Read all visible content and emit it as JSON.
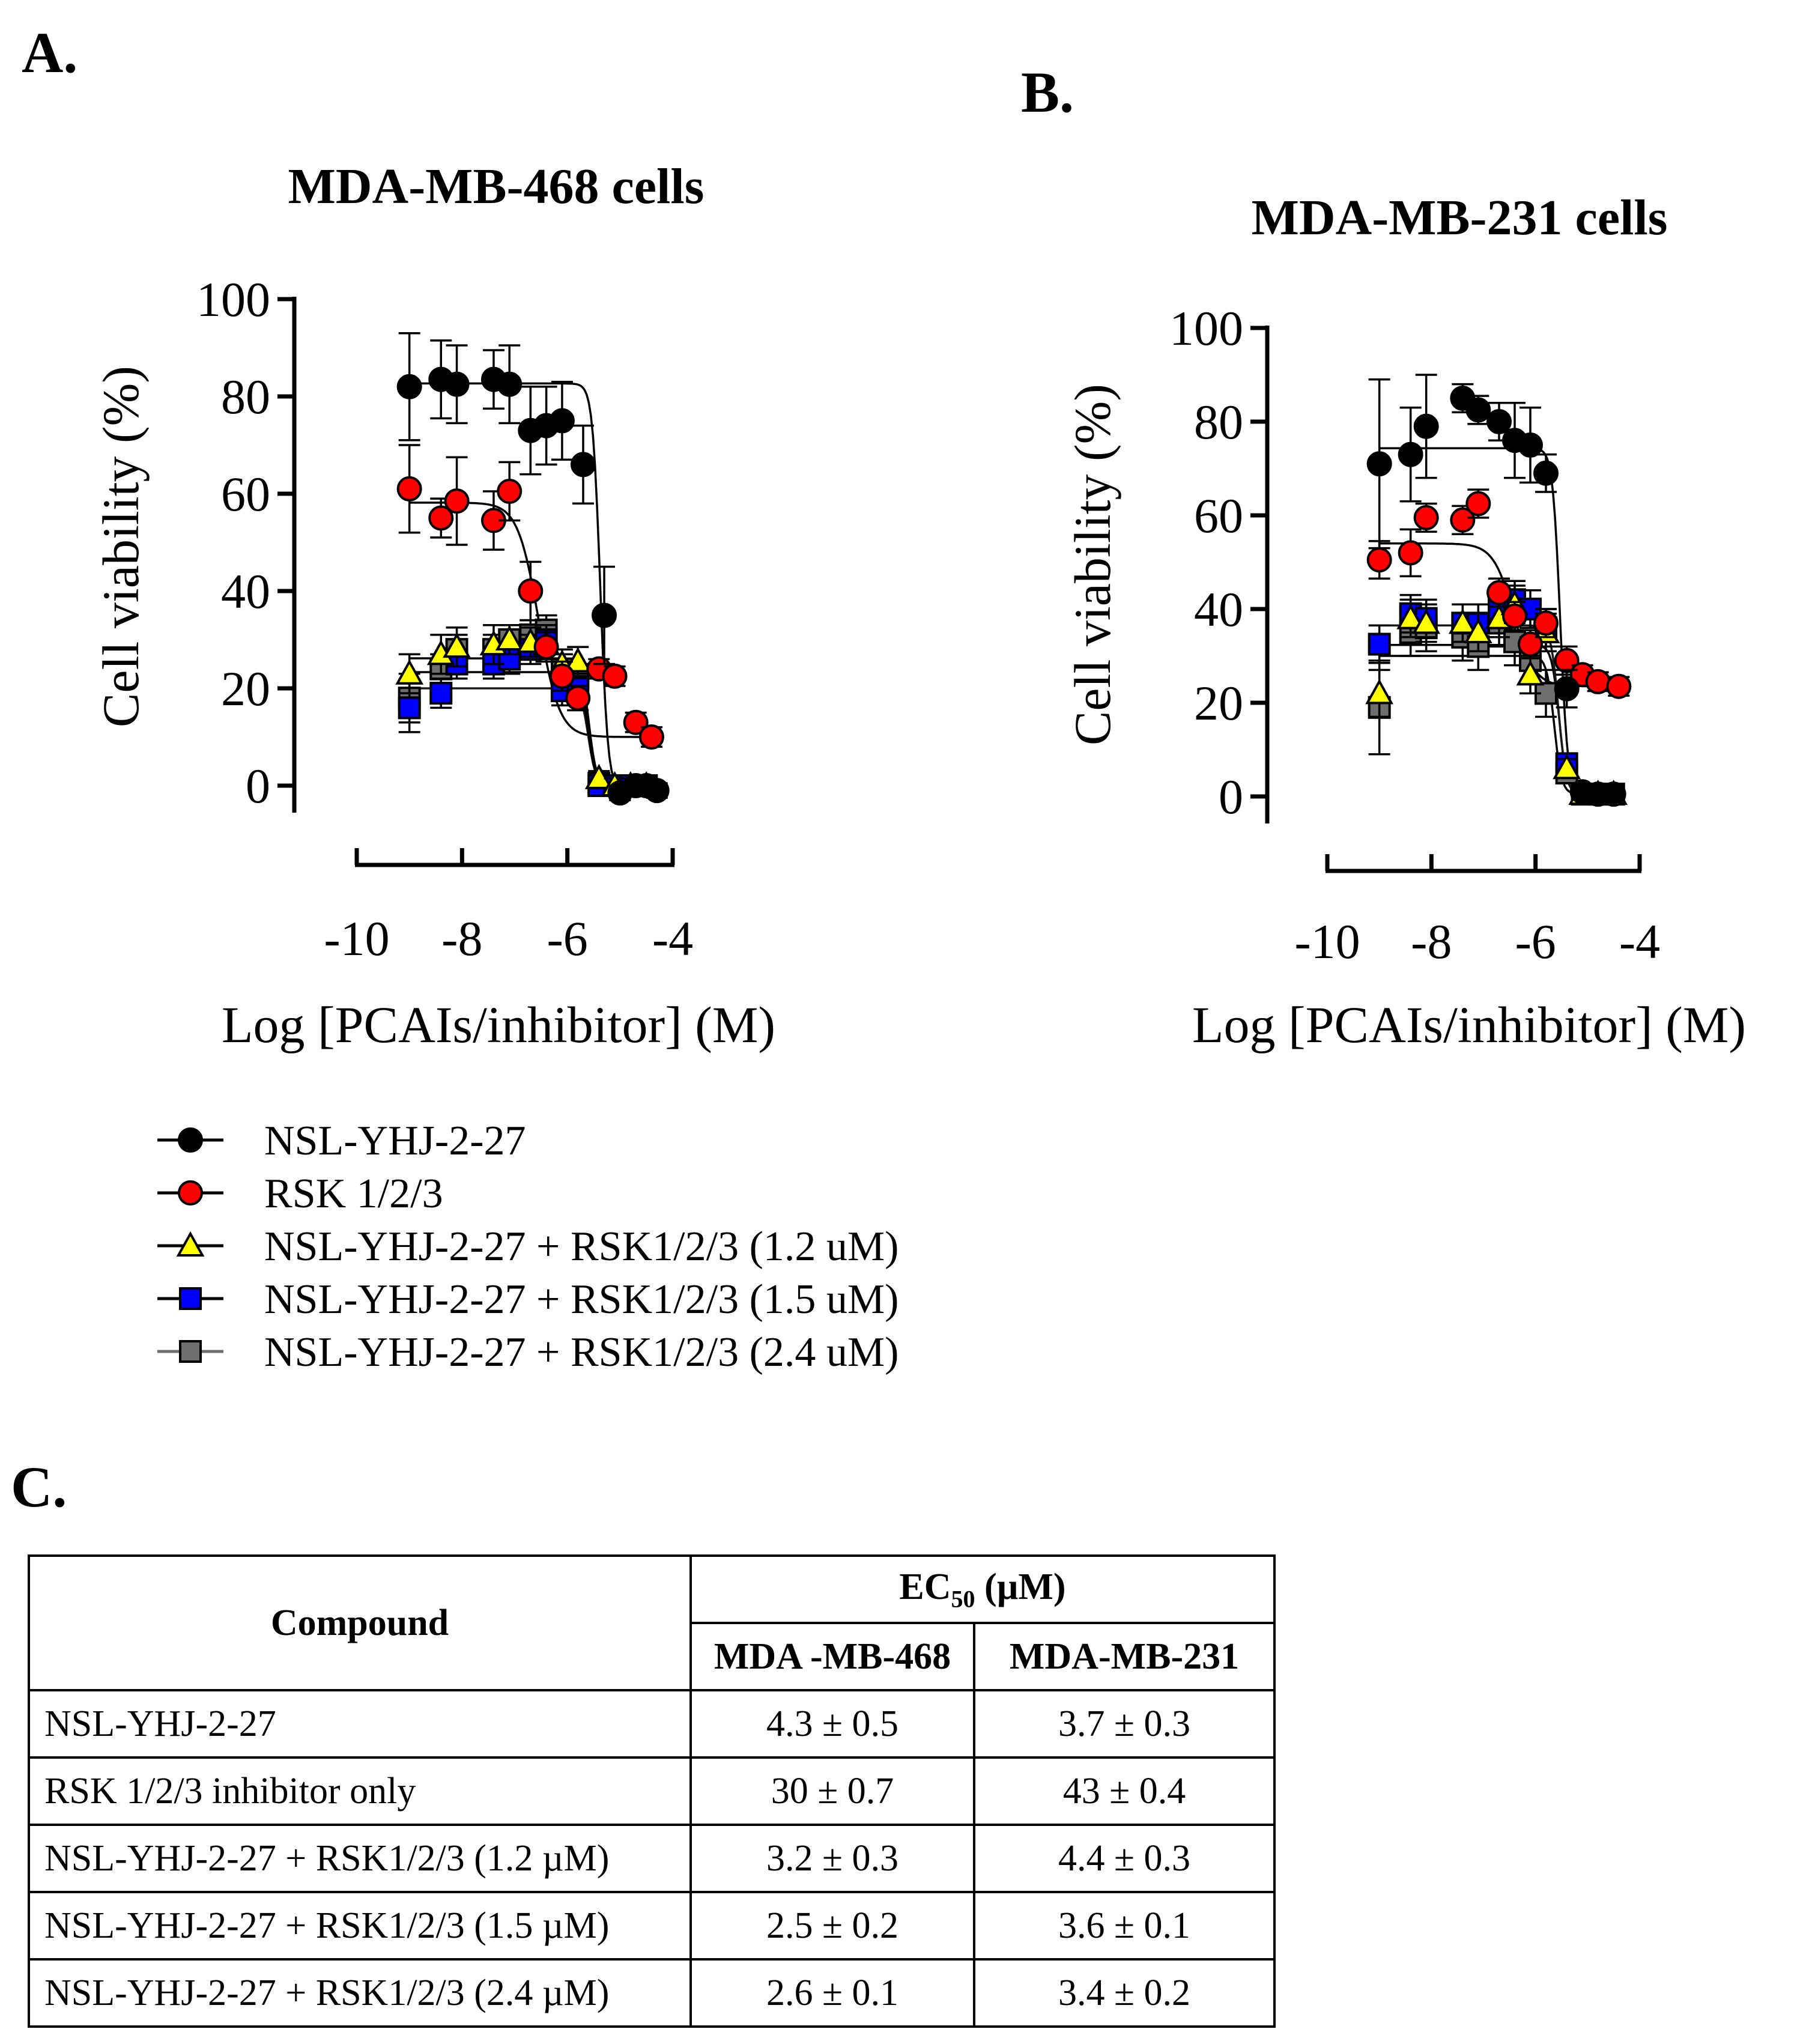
{
  "panels": {
    "a": {
      "label": "A."
    },
    "b": {
      "label": "B."
    },
    "c": {
      "label": "C."
    }
  },
  "chart_data": [
    {
      "type": "scatter",
      "panel": "A.",
      "title": "MDA-MB-468 cells",
      "xlabel": "Log [PCAIs/inhibitor] (M)",
      "ylabel": "Cell viability (%)",
      "xlim": [
        -10,
        -4
      ],
      "ylim": [
        0,
        100
      ],
      "xticks": [
        -10,
        -8,
        -6,
        -4
      ],
      "yticks": [
        0,
        20,
        40,
        60,
        80,
        100
      ],
      "xtick_labels": [
        "-10",
        "-8",
        "-6",
        "-4"
      ],
      "ytick_labels": [
        "0",
        "20",
        "40",
        "60",
        "80",
        "100"
      ],
      "series": [
        {
          "name": "NSL-YHJ-2-27",
          "marker": "circle",
          "color": "#000000",
          "x": [
            -9,
            -8.4,
            -8.1,
            -7.4,
            -7.1,
            -6.7,
            -6.4,
            -6.1,
            -5.7,
            -5.3,
            -5.0,
            -4.7,
            -4.5,
            -4.3
          ],
          "y": [
            82,
            83.5,
            82.5,
            83.5,
            82.5,
            73,
            74,
            75,
            66,
            35,
            -1.5,
            0,
            0,
            -1
          ],
          "err": [
            11,
            8,
            8,
            6,
            8,
            9,
            8,
            8,
            8,
            10,
            1.5,
            1.5,
            1.5,
            1.5
          ]
        },
        {
          "name": "RSK 1/2/3",
          "marker": "circle",
          "color": "#ff0000",
          "x": [
            -9,
            -8.4,
            -8.1,
            -7.4,
            -7.1,
            -6.7,
            -6.4,
            -6.1,
            -5.8,
            -5.4,
            -5.1,
            -4.7,
            -4.4
          ],
          "y": [
            61,
            55,
            58.5,
            54.5,
            60.5,
            40,
            28.5,
            22.5,
            18,
            24,
            22.5,
            13,
            10
          ],
          "err": [
            9,
            4,
            9,
            6,
            6,
            6,
            3,
            3,
            2.5,
            2,
            2,
            2,
            2
          ]
        },
        {
          "name": "NSL-YHJ-2-27 + RSK1/2/3 (1.2 uM)",
          "marker": "triangle",
          "color": "#ffff00",
          "x": [
            -9,
            -8.4,
            -8.1,
            -7.4,
            -7.1,
            -6.7,
            -6.4,
            -6.1,
            -5.8,
            -5.4,
            -5.1,
            -4.8,
            -4.5
          ],
          "y": [
            23,
            27,
            28.5,
            29,
            30,
            29.5,
            29,
            25,
            25.5,
            1.5,
            0,
            0,
            0
          ],
          "err": [
            4,
            4,
            4,
            4,
            3,
            3,
            3,
            3,
            3,
            1.5,
            1.5,
            1.5,
            1.5
          ]
        },
        {
          "name": "NSL-YHJ-2-27 + RSK1/2/3 (1.5 uM)",
          "marker": "square",
          "color": "#0000ff",
          "x": [
            -9,
            -8.4,
            -8.1,
            -7.4,
            -7.1,
            -6.7,
            -6.4,
            -6.1,
            -5.8,
            -5.4,
            -5.1,
            -4.8,
            -4.5
          ],
          "y": [
            16,
            19,
            25,
            25,
            26,
            28,
            30,
            19.5,
            20,
            0,
            0,
            0,
            0
          ],
          "err": [
            5,
            3,
            3,
            3,
            3,
            3,
            3,
            3,
            3,
            1.5,
            1.5,
            1.5,
            1.5
          ]
        },
        {
          "name": "NSL-YHJ-2-27 + RSK1/2/3 (2.4 uM)",
          "marker": "square",
          "color": "#6e6e6e",
          "x": [
            -9,
            -8.4,
            -8.1,
            -7.4,
            -7.1,
            -6.7,
            -6.4,
            -6.1,
            -5.8,
            -5.4,
            -5.1,
            -4.8,
            -4.5
          ],
          "y": [
            18,
            24,
            28,
            28,
            30,
            31,
            32,
            24,
            22,
            0.5,
            0,
            0,
            0
          ],
          "err": [
            5,
            3,
            3,
            3,
            3,
            3,
            3,
            3,
            3,
            1.5,
            1.5,
            1.5,
            1.5
          ]
        }
      ]
    },
    {
      "type": "scatter",
      "panel": "B.",
      "title": "MDA-MB-231 cells",
      "xlabel": "Log [PCAIs/inhibitor] (M)",
      "ylabel": "Cell viability (%)",
      "xlim": [
        -10,
        -4
      ],
      "ylim": [
        0,
        100
      ],
      "xticks": [
        -10,
        -8,
        -6,
        -4
      ],
      "yticks": [
        0,
        20,
        40,
        60,
        80,
        100
      ],
      "xtick_labels": [
        "-10",
        "-8",
        "-6",
        "-4"
      ],
      "ytick_labels": [
        "0",
        "20",
        "40",
        "60",
        "80",
        "100"
      ],
      "series": [
        {
          "name": "NSL-YHJ-2-27",
          "marker": "circle",
          "color": "#000000",
          "x": [
            -9,
            -8.4,
            -8.1,
            -7.4,
            -7.1,
            -6.7,
            -6.4,
            -6.1,
            -5.8,
            -5.4,
            -5.1,
            -4.8,
            -4.5
          ],
          "y": [
            71,
            73,
            79,
            85,
            82.5,
            80,
            76,
            75,
            69,
            23,
            1,
            0.5,
            0.5
          ],
          "err": [
            18,
            10,
            11,
            3,
            3,
            4,
            8,
            8,
            4,
            4,
            1.5,
            1.5,
            1.5
          ]
        },
        {
          "name": "RSK 1/2/3",
          "marker": "circle",
          "color": "#ff0000",
          "x": [
            -9,
            -8.4,
            -8.1,
            -7.4,
            -7.1,
            -6.7,
            -6.4,
            -6.1,
            -5.8,
            -5.4,
            -5.1,
            -4.8,
            -4.4
          ],
          "y": [
            50.5,
            52,
            59.5,
            59,
            62.5,
            43.5,
            38.5,
            32.5,
            37,
            29,
            26,
            24.5,
            23.5
          ],
          "err": [
            4,
            5,
            3,
            3,
            3,
            3,
            3,
            3,
            3,
            3,
            2,
            2,
            2
          ]
        },
        {
          "name": "NSL-YHJ-2-27 + RSK1/2/3 (1.2 uM)",
          "marker": "triangle",
          "color": "#ffff00",
          "x": [
            -9,
            -8.4,
            -8.1,
            -7.4,
            -7.1,
            -6.7,
            -6.4,
            -6.1,
            -5.8,
            -5.4,
            -5.1,
            -4.8,
            -4.5
          ],
          "y": [
            22,
            38,
            37,
            37,
            35,
            38,
            41,
            26,
            35,
            6,
            0.5,
            0.5,
            0.5
          ],
          "err": [
            5,
            4,
            4,
            4,
            4,
            4,
            4,
            4,
            4,
            2,
            1.5,
            1.5,
            1.5
          ]
        },
        {
          "name": "NSL-YHJ-2-27 + RSK1/2/3 (1.5 uM)",
          "marker": "square",
          "color": "#0000ff",
          "x": [
            -9,
            -8.4,
            -8.1,
            -7.4,
            -7.1,
            -6.7,
            -6.4,
            -6.1,
            -5.8,
            -5.4,
            -5.1,
            -4.8,
            -4.5
          ],
          "y": [
            32.5,
            39,
            38,
            37,
            37,
            40,
            42,
            40,
            36,
            7,
            0.5,
            0.5,
            0.5
          ],
          "err": [
            4,
            4,
            4,
            4,
            4,
            4,
            4,
            4,
            4,
            2,
            1.5,
            1.5,
            1.5
          ]
        },
        {
          "name": "NSL-YHJ-2-27 + RSK1/2/3 (2.4 uM)",
          "marker": "square",
          "color": "#6e6e6e",
          "x": [
            -9,
            -8.4,
            -8.1,
            -7.4,
            -7.1,
            -6.7,
            -6.4,
            -6.1,
            -5.8,
            -5.4,
            -5.1,
            -4.8,
            -4.5
          ],
          "y": [
            19,
            35,
            36,
            34,
            32,
            37,
            33,
            29,
            22,
            5,
            0.5,
            0.5,
            0.5
          ],
          "err": [
            10,
            5,
            5,
            5,
            5,
            5,
            5,
            5,
            5,
            2,
            1.5,
            1.5,
            1.5
          ]
        }
      ]
    }
  ],
  "legend": {
    "items": [
      {
        "label": "NSL-YHJ-2-27",
        "marker": "circle",
        "color": "#000000"
      },
      {
        "label": "RSK 1/2/3",
        "marker": "circle",
        "color": "#ff0000"
      },
      {
        "label": "NSL-YHJ-2-27 + RSK1/2/3 (1.2 uM)",
        "marker": "triangle",
        "color": "#ffff00"
      },
      {
        "label": "NSL-YHJ-2-27 + RSK1/2/3 (1.5 uM)",
        "marker": "square",
        "color": "#0000ff"
      },
      {
        "label": "NSL-YHJ-2-27 + RSK1/2/3 (2.4 uM)",
        "marker": "square",
        "color": "#6e6e6e"
      }
    ]
  },
  "table": {
    "compound_header": "Compound",
    "ec50_header_prefix": "EC",
    "ec50_header_sub": "50",
    "ec50_header_suffix": " (µM)",
    "col1": "MDA -MB-468",
    "col2": "MDA-MB-231",
    "rows": [
      {
        "compound": "NSL-YHJ-2-27",
        "mb468": "4.3 ± 0.5",
        "mb231": "3.7 ± 0.3"
      },
      {
        "compound": "RSK 1/2/3 inhibitor only",
        "mb468": "30 ± 0.7",
        "mb231": "43 ± 0.4"
      },
      {
        "compound": "NSL-YHJ-2-27 + RSK1/2/3 (1.2 µM)",
        "mb468": "3.2 ± 0.3",
        "mb231": "4.4 ± 0.3"
      },
      {
        "compound": "NSL-YHJ-2-27 + RSK1/2/3 (1.5 µM)",
        "mb468": "2.5 ± 0.2",
        "mb231": "3.6 ± 0.1"
      },
      {
        "compound": "NSL-YHJ-2-27 + RSK1/2/3 (2.4 µM)",
        "mb468": "2.6 ± 0.1",
        "mb231": "3.4 ± 0.2"
      }
    ]
  }
}
